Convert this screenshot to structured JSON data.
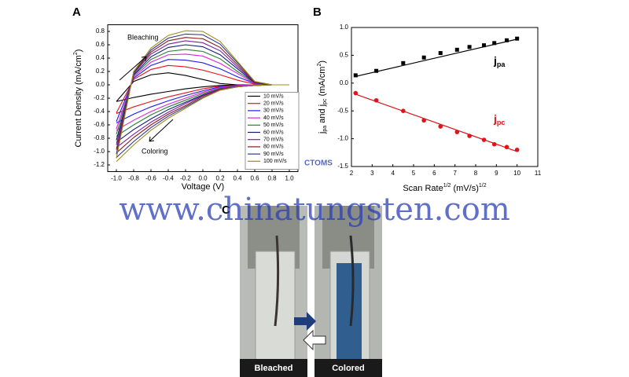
{
  "panels": {
    "a": "A",
    "b": "B",
    "c": "C"
  },
  "photos": [
    "Bleached",
    "Colored"
  ],
  "watermark": {
    "url": "www.chinatungsten.com",
    "logo": "CTOMS"
  },
  "chart_data": [
    {
      "type": "line",
      "xlabel": [
        {
          "text": "Voltage (V)"
        }
      ],
      "ylabel": [
        {
          "text": "Current Density (mA/cm"
        },
        {
          "text": "2",
          "sup": true
        },
        {
          "text": ")"
        }
      ],
      "annotations": [
        {
          "text": "Bleaching"
        },
        {
          "text": "Coloring"
        }
      ],
      "legend": "lower right",
      "xlim": [
        -1.1,
        1.1
      ],
      "ylim": [
        -1.3,
        0.9
      ],
      "xticks": [
        {
          "value": -1,
          "label": "-1.0"
        },
        -0.8,
        -0.6,
        -0.4,
        -0.2,
        {
          "value": 0,
          "label": "0.0"
        },
        0.2,
        0.4,
        0.6,
        0.8,
        {
          "value": 1,
          "label": "1.0"
        }
      ],
      "yticks": [
        -1.2,
        {
          "value": -1,
          "label": "-1.0"
        },
        -0.8,
        -0.6,
        -0.4,
        -0.2,
        {
          "value": 0,
          "label": "0.0"
        },
        0.2,
        0.4,
        0.6,
        0.8
      ],
      "x": [
        -1,
        -0.8,
        -0.6,
        -0.4,
        -0.2,
        0,
        0.2,
        0.4,
        0.6,
        0.8,
        1,
        0.8,
        0.6,
        0.4,
        0.2,
        0,
        -0.2,
        -0.4,
        -0.6,
        -0.8,
        -1
      ],
      "series": [
        {
          "name": "10 mV/s",
          "color": "#000000",
          "values": [
            -0.25,
            0.05,
            0.15,
            0.18,
            0.14,
            0.08,
            0.02,
            0,
            0,
            0,
            0,
            0,
            0,
            0,
            -0.01,
            -0.03,
            -0.06,
            -0.1,
            -0.14,
            -0.19,
            -0.25
          ]
        },
        {
          "name": "20 mV/s",
          "color": "#e8141b",
          "values": [
            -0.42,
            0.08,
            0.23,
            0.29,
            0.27,
            0.22,
            0.15,
            0.07,
            0.01,
            0,
            0,
            0,
            0,
            -0.01,
            -0.02,
            -0.06,
            -0.12,
            -0.18,
            -0.25,
            -0.33,
            -0.43
          ]
        },
        {
          "name": "30 mV/s",
          "color": "#1c1cf0",
          "values": [
            -0.55,
            0.1,
            0.29,
            0.38,
            0.37,
            0.33,
            0.24,
            0.12,
            0.02,
            0,
            0,
            0,
            0,
            -0.01,
            -0.03,
            -0.09,
            -0.16,
            -0.24,
            -0.33,
            -0.44,
            -0.57
          ]
        },
        {
          "name": "40 mV/s",
          "color": "#e020e0",
          "values": [
            -0.66,
            0.12,
            0.34,
            0.45,
            0.46,
            0.43,
            0.32,
            0.17,
            0.02,
            0,
            0,
            0,
            0,
            -0.01,
            -0.04,
            -0.11,
            -0.2,
            -0.29,
            -0.4,
            -0.53,
            -0.68
          ]
        },
        {
          "name": "50 mV/s",
          "color": "#2e7d32",
          "values": [
            -0.74,
            0.14,
            0.38,
            0.5,
            0.53,
            0.5,
            0.39,
            0.2,
            0.03,
            0,
            0,
            0,
            -0.01,
            -0.02,
            -0.05,
            -0.13,
            -0.23,
            -0.33,
            -0.45,
            -0.6,
            -0.77
          ]
        },
        {
          "name": "60 mV/s",
          "color": "#0d1f7a",
          "values": [
            -0.83,
            0.15,
            0.42,
            0.56,
            0.6,
            0.57,
            0.45,
            0.24,
            0.03,
            0,
            0,
            0,
            -0.01,
            -0.02,
            -0.06,
            -0.15,
            -0.26,
            -0.37,
            -0.51,
            -0.67,
            -0.86
          ]
        },
        {
          "name": "70 mV/s",
          "color": "#7b1fa2",
          "values": [
            -0.9,
            0.17,
            0.46,
            0.61,
            0.66,
            0.63,
            0.51,
            0.27,
            0.04,
            0,
            0,
            0,
            -0.01,
            -0.02,
            -0.06,
            -0.16,
            -0.28,
            -0.41,
            -0.56,
            -0.74,
            -0.94
          ]
        },
        {
          "name": "80 mV/s",
          "color": "#8b1a1a",
          "values": [
            -0.97,
            0.18,
            0.49,
            0.66,
            0.71,
            0.69,
            0.56,
            0.3,
            0.04,
            0,
            0,
            0,
            -0.01,
            -0.03,
            -0.07,
            -0.17,
            -0.31,
            -0.44,
            -0.6,
            -0.79,
            -1.02
          ]
        },
        {
          "name": "90 mV/s",
          "color": "#283593",
          "values": [
            -1.04,
            0.19,
            0.52,
            0.7,
            0.76,
            0.75,
            0.61,
            0.33,
            0.05,
            0,
            0,
            0,
            -0.01,
            -0.03,
            -0.08,
            -0.19,
            -0.33,
            -0.47,
            -0.64,
            -0.85,
            -1.09
          ]
        },
        {
          "name": "100 mV/s",
          "color": "#9e8a1a",
          "values": [
            -1.1,
            0.2,
            0.55,
            0.74,
            0.81,
            0.8,
            0.65,
            0.35,
            0.05,
            0,
            0,
            0,
            -0.01,
            -0.03,
            -0.08,
            -0.2,
            -0.35,
            -0.5,
            -0.68,
            -0.9,
            -1.15
          ]
        }
      ]
    },
    {
      "type": "scatter",
      "xlabel": [
        {
          "text": "Scan Rate"
        },
        {
          "text": "1/2",
          "sup": true
        },
        {
          "text": " (mV/s)"
        },
        {
          "text": "1/2",
          "sup": true
        }
      ],
      "ylabel": [
        {
          "text": "j"
        },
        {
          "text": "pa",
          "sub": true
        },
        {
          "text": " and j"
        },
        {
          "text": "pc",
          "sub": true
        },
        {
          "text": " (mA/cm"
        },
        {
          "text": "2",
          "sup": true
        },
        {
          "text": ")"
        }
      ],
      "xlim": [
        2,
        11
      ],
      "ylim": [
        -1.5,
        1
      ],
      "xticks": [
        2,
        3,
        4,
        5,
        6,
        7,
        8,
        9,
        10,
        11
      ],
      "yticks": [
        -1.5,
        {
          "value": -1,
          "label": "-1.0"
        },
        -0.5,
        {
          "value": 0,
          "label": "0.0"
        },
        0.5,
        {
          "value": 1,
          "label": "1.0"
        }
      ],
      "series": [
        {
          "name": "j",
          "subscript": "pa",
          "color": "#000000",
          "marker": "square",
          "x": [
            2.2,
            3.2,
            4.5,
            5.5,
            6.3,
            7.1,
            7.7,
            8.4,
            8.9,
            9.5,
            10
          ],
          "values": [
            0.14,
            0.22,
            0.36,
            0.46,
            0.54,
            0.6,
            0.65,
            0.68,
            0.72,
            0.77,
            0.8
          ],
          "fit": {
            "x": [
              2.2,
              10
            ],
            "values": [
              0.12,
              0.79
            ]
          }
        },
        {
          "name": "j",
          "subscript": "pc",
          "color": "#e0141b",
          "marker": "circle",
          "x": [
            2.2,
            3.2,
            4.5,
            5.5,
            6.3,
            7.1,
            7.7,
            8.4,
            8.9,
            9.5,
            10
          ],
          "values": [
            -0.18,
            -0.31,
            -0.5,
            -0.67,
            -0.78,
            -0.88,
            -0.95,
            -1.02,
            -1.1,
            -1.15,
            -1.2
          ],
          "fit": {
            "x": [
              2.2,
              10
            ],
            "values": [
              -0.2,
              -1.23
            ]
          }
        }
      ]
    }
  ]
}
